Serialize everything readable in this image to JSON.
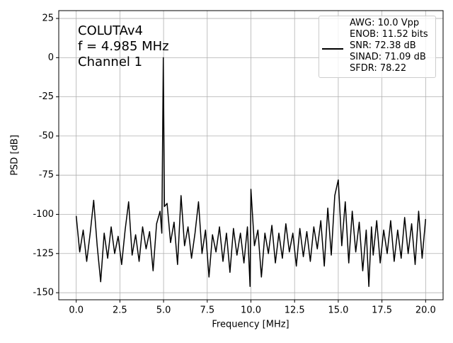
{
  "chart_data": {
    "type": "line",
    "xlabel": "Frequency [MHz]",
    "ylabel": "PSD [dB]",
    "annotation": [
      "COLUTAv4",
      "f = 4.985 MHz",
      "Channel 1"
    ],
    "xlim": [
      -1,
      21
    ],
    "ylim": [
      -154.5,
      30
    ],
    "xticks": [
      {
        "value": 0,
        "label": "0.0"
      },
      2.5,
      {
        "value": 5,
        "label": "5.0"
      },
      7.5,
      {
        "value": 10,
        "label": "10.0"
      },
      12.5,
      {
        "value": 15,
        "label": "15.0"
      },
      17.5,
      {
        "value": 20,
        "label": "20.0"
      }
    ],
    "yticks": [
      25,
      0,
      -25,
      -50,
      -75,
      -100,
      -125,
      -150
    ],
    "grid": true,
    "legend": "upper right",
    "x": [
      0,
      0.2,
      0.4,
      0.6,
      0.8,
      1.0,
      1.2,
      1.4,
      1.6,
      1.8,
      2.0,
      2.2,
      2.4,
      2.6,
      2.8,
      3.0,
      3.2,
      3.4,
      3.6,
      3.8,
      4.0,
      4.2,
      4.4,
      4.6,
      4.8,
      4.9,
      4.985,
      5.05,
      5.2,
      5.4,
      5.6,
      5.8,
      6.0,
      6.2,
      6.4,
      6.6,
      6.8,
      7.0,
      7.2,
      7.4,
      7.6,
      7.8,
      8.0,
      8.2,
      8.4,
      8.6,
      8.8,
      9.0,
      9.2,
      9.4,
      9.6,
      9.8,
      9.95,
      10.0,
      10.2,
      10.4,
      10.6,
      10.8,
      11.0,
      11.2,
      11.4,
      11.6,
      11.8,
      12.0,
      12.2,
      12.4,
      12.6,
      12.8,
      13.0,
      13.2,
      13.4,
      13.6,
      13.8,
      14.0,
      14.2,
      14.4,
      14.6,
      14.8,
      15.0,
      15.2,
      15.4,
      15.6,
      15.8,
      16.0,
      16.2,
      16.4,
      16.6,
      16.75,
      16.9,
      17.0,
      17.2,
      17.4,
      17.6,
      17.8,
      18.0,
      18.2,
      18.4,
      18.6,
      18.8,
      19.0,
      19.2,
      19.4,
      19.6,
      19.8,
      20.0
    ],
    "series": [
      {
        "name": "AWG: 10.0 Vpp\nENOB: 11.52 bits\nSNR: 72.38 dB\nSINAD: 71.09 dB\nSFDR: 78.22",
        "color": "#000000",
        "values": [
          -101,
          -124,
          -110,
          -130,
          -112,
          -91,
          -120,
          -143,
          -112,
          -128,
          -108,
          -125,
          -114,
          -132,
          -110,
          -92,
          -126,
          -113,
          -130,
          -108,
          -122,
          -111,
          -136,
          -106,
          -98,
          -112,
          0,
          -95,
          -93,
          -118,
          -105,
          -132,
          -88,
          -120,
          -108,
          -128,
          -112,
          -92,
          -125,
          -110,
          -140,
          -113,
          -124,
          -108,
          -130,
          -112,
          -137,
          -109,
          -126,
          -112,
          -131,
          -108,
          -146,
          -84,
          -120,
          -110,
          -140,
          -112,
          -125,
          -107,
          -131,
          -112,
          -128,
          -106,
          -124,
          -112,
          -133,
          -109,
          -127,
          -111,
          -130,
          -108,
          -122,
          -104,
          -133,
          -96,
          -126,
          -88,
          -78,
          -120,
          -92,
          -131,
          -98,
          -124,
          -105,
          -136,
          -110,
          -146,
          -108,
          -126,
          -104,
          -131,
          -110,
          -125,
          -104,
          -130,
          -110,
          -128,
          -102,
          -125,
          -106,
          -132,
          -98,
          -128,
          -103
        ]
      }
    ]
  }
}
